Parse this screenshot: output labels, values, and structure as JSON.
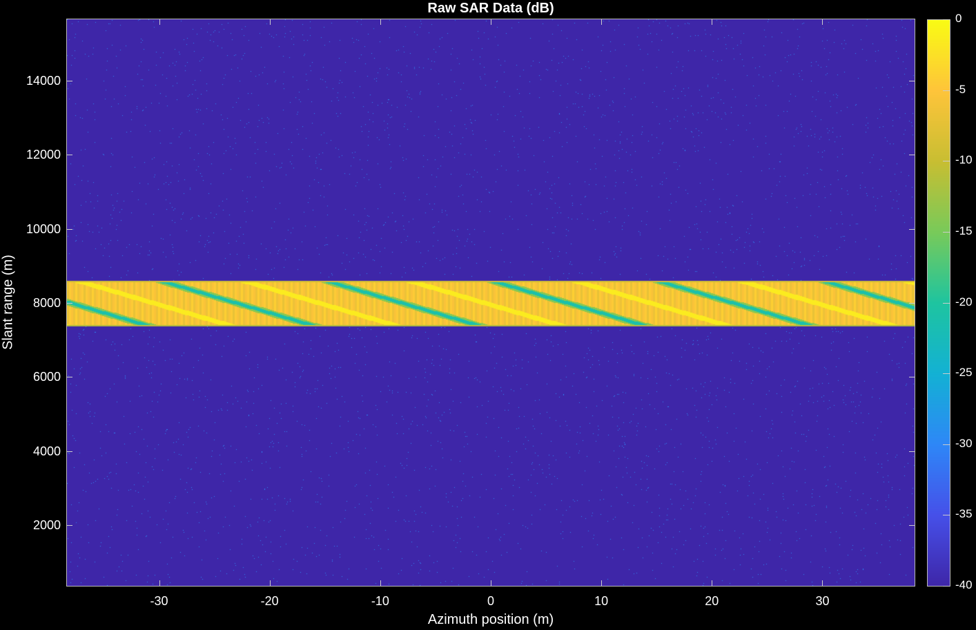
{
  "chart_data": {
    "type": "heatmap",
    "title": "Raw SAR Data (dB)",
    "xlabel": "Azimuth position (m)",
    "ylabel": "Slant range (m)",
    "xlim": [
      -38.4,
      38.4
    ],
    "ylim": [
      340,
      15680
    ],
    "xticks": [
      -30,
      -20,
      -10,
      0,
      10,
      20,
      30
    ],
    "yticks": [
      2000,
      4000,
      6000,
      8000,
      10000,
      12000,
      14000
    ],
    "colorbar": {
      "clim": [
        -40,
        0
      ],
      "ticks": [
        0,
        -5,
        -10,
        -15,
        -20,
        -25,
        -30,
        -35,
        -40
      ],
      "colormap": "parula",
      "location": "right"
    },
    "signal_band_range": [
      7370,
      8610
    ],
    "background_level_db": -40,
    "grid": false
  }
}
